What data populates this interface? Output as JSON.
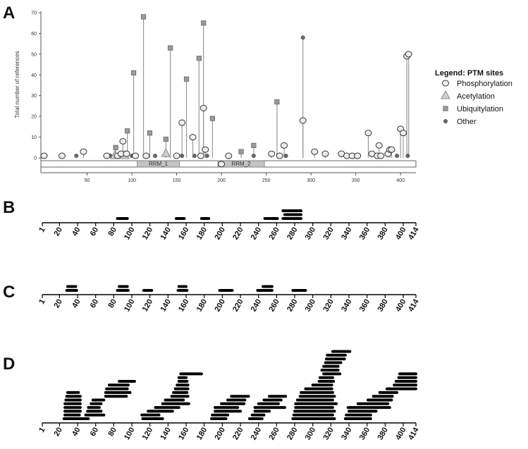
{
  "chart_data": [
    {
      "panel": "A",
      "type": "scatter",
      "ylabel": "Total number of references",
      "xlim": [
        0,
        414
      ],
      "ylim": [
        0,
        70
      ],
      "x_ticks": [
        50,
        100,
        150,
        200,
        250,
        300,
        350,
        400
      ],
      "y_ticks": [
        0,
        10,
        20,
        30,
        40,
        50,
        60,
        70
      ],
      "grid": false,
      "legend_position": "right",
      "legend": {
        "title": "Legend: PTM sites",
        "items": [
          {
            "label": "Phosphorylation",
            "marker": "circle",
            "color": "#e6e6e6"
          },
          {
            "label": "Acetylation",
            "marker": "triangle",
            "color": "#c8c8c8"
          },
          {
            "label": "Ubiquitylation",
            "marker": "square",
            "color": "#9a9a9a"
          },
          {
            "label": "Other",
            "marker": "dot",
            "color": "#6b6b6b"
          }
        ]
      },
      "domains": [
        {
          "label": "RRM_1",
          "start": 106,
          "end": 153
        },
        {
          "label": "RRM_2",
          "start": 196,
          "end": 248
        }
      ],
      "series": [
        {
          "name": "Phosphorylation",
          "points": [
            [
              2,
              1
            ],
            [
              22,
              1
            ],
            [
              46,
              3
            ],
            [
              72,
              1
            ],
            [
              84,
              1
            ],
            [
              88,
              2
            ],
            [
              90,
              8
            ],
            [
              94,
              2
            ],
            [
              104,
              1
            ],
            [
              116,
              1
            ],
            [
              150,
              1
            ],
            [
              156,
              17
            ],
            [
              168,
              10
            ],
            [
              177,
              1
            ],
            [
              180,
              24
            ],
            [
              182,
              4
            ],
            [
              200,
              -3
            ],
            [
              208,
              1
            ],
            [
              256,
              2
            ],
            [
              265,
              1
            ],
            [
              270,
              6
            ],
            [
              291,
              18
            ],
            [
              304,
              3
            ],
            [
              316,
              2
            ],
            [
              334,
              2
            ],
            [
              340,
              1
            ],
            [
              346,
              1
            ],
            [
              352,
              1
            ],
            [
              364,
              12
            ],
            [
              368,
              2
            ],
            [
              374,
              1
            ],
            [
              376,
              6
            ],
            [
              378,
              1
            ],
            [
              386,
              2
            ],
            [
              388,
              4
            ],
            [
              390,
              4
            ],
            [
              400,
              14
            ],
            [
              403,
              12
            ],
            [
              407,
              49
            ],
            [
              409,
              50
            ]
          ]
        },
        {
          "name": "Acetylation",
          "points": [
            [
              81,
              1
            ],
            [
              92,
              1
            ],
            [
              138,
              2
            ]
          ]
        },
        {
          "name": "Ubiquitylation",
          "points": [
            [
              82,
              5
            ],
            [
              95,
              13
            ],
            [
              102,
              41
            ],
            [
              113,
              68
            ],
            [
              120,
              12
            ],
            [
              138,
              9
            ],
            [
              143,
              53
            ],
            [
              161,
              38
            ],
            [
              175,
              48
            ],
            [
              180,
              65
            ],
            [
              190,
              19
            ],
            [
              222,
              3
            ],
            [
              236,
              6
            ],
            [
              262,
              27
            ]
          ]
        },
        {
          "name": "Other",
          "points": [
            [
              38,
              1
            ],
            [
              76,
              1
            ],
            [
              100,
              1
            ],
            [
              126,
              1
            ],
            [
              156,
              1
            ],
            [
              170,
              1
            ],
            [
              176,
              1
            ],
            [
              184,
              1
            ],
            [
              236,
              1
            ],
            [
              266,
              1
            ],
            [
              272,
              1
            ],
            [
              291,
              58
            ],
            [
              396,
              1
            ],
            [
              408,
              1
            ]
          ]
        }
      ]
    },
    {
      "panel": "B",
      "type": "bar",
      "xlim": [
        1,
        414
      ],
      "x_tick_labels": [
        "1",
        "20",
        "40",
        "60",
        "80",
        "100",
        "120",
        "140",
        "160",
        "180",
        "200",
        "220",
        "240",
        "260",
        "280",
        "300",
        "320",
        "340",
        "360",
        "380",
        "400",
        "414"
      ],
      "segments": [
        [
          84,
          95,
          0
        ],
        [
          149,
          158,
          0
        ],
        [
          177,
          185,
          0
        ],
        [
          247,
          261,
          0
        ],
        [
          267,
          287,
          0
        ],
        [
          269,
          287,
          1
        ],
        [
          267,
          287,
          2
        ]
      ]
    },
    {
      "panel": "C",
      "type": "bar",
      "xlim": [
        1,
        414
      ],
      "x_tick_labels": [
        "1",
        "20",
        "40",
        "60",
        "80",
        "100",
        "120",
        "140",
        "160",
        "180",
        "200",
        "220",
        "240",
        "260",
        "280",
        "300",
        "320",
        "340",
        "360",
        "380",
        "400",
        "414"
      ],
      "segments": [
        [
          28,
          39,
          0
        ],
        [
          29,
          38,
          1
        ],
        [
          84,
          96,
          0
        ],
        [
          86,
          95,
          1
        ],
        [
          113,
          122,
          0
        ],
        [
          151,
          161,
          0
        ],
        [
          152,
          160,
          1
        ],
        [
          197,
          211,
          0
        ],
        [
          239,
          255,
          0
        ],
        [
          245,
          255,
          1
        ],
        [
          278,
          292,
          0
        ]
      ]
    },
    {
      "panel": "D",
      "type": "bar",
      "xlim": [
        1,
        414
      ],
      "x_tick_labels": [
        "1",
        "20",
        "40",
        "60",
        "80",
        "100",
        "120",
        "140",
        "160",
        "180",
        "200",
        "220",
        "240",
        "260",
        "280",
        "300",
        "320",
        "340",
        "360",
        "380",
        "400",
        "414"
      ],
      "segments": [
        [
          25,
          41,
          0
        ],
        [
          42,
          52,
          0
        ],
        [
          26,
          42,
          1
        ],
        [
          26,
          43,
          2
        ],
        [
          26,
          43,
          3
        ],
        [
          26,
          43,
          4
        ],
        [
          27,
          43,
          5
        ],
        [
          28,
          43,
          6
        ],
        [
          29,
          41,
          7
        ],
        [
          49,
          69,
          1
        ],
        [
          51,
          66,
          2
        ],
        [
          52,
          64,
          3
        ],
        [
          55,
          66,
          4
        ],
        [
          57,
          69,
          5
        ],
        [
          71,
          94,
          6
        ],
        [
          71,
          98,
          7
        ],
        [
          72,
          95,
          8
        ],
        [
          75,
          96,
          9
        ],
        [
          86,
          103,
          10
        ],
        [
          112,
          134,
          0
        ],
        [
          111,
          130,
          1
        ],
        [
          118,
          145,
          2
        ],
        [
          126,
          152,
          3
        ],
        [
          134,
          163,
          4
        ],
        [
          137,
          157,
          5
        ],
        [
          144,
          162,
          6
        ],
        [
          146,
          161,
          7
        ],
        [
          148,
          162,
          8
        ],
        [
          150,
          162,
          9
        ],
        [
          152,
          161,
          10
        ],
        [
          152,
          160,
          11
        ],
        [
          154,
          177,
          12
        ],
        [
          188,
          204,
          0
        ],
        [
          189,
          206,
          1
        ],
        [
          192,
          220,
          2
        ],
        [
          192,
          217,
          3
        ],
        [
          199,
          224,
          4
        ],
        [
          206,
          225,
          5
        ],
        [
          210,
          229,
          6
        ],
        [
          230,
          244,
          0
        ],
        [
          233,
          246,
          1
        ],
        [
          236,
          252,
          2
        ],
        [
          236,
          269,
          3
        ],
        [
          240,
          262,
          4
        ],
        [
          246,
          265,
          5
        ],
        [
          252,
          270,
          6
        ],
        [
          278,
          324,
          0
        ],
        [
          279,
          322,
          1
        ],
        [
          280,
          324,
          2
        ],
        [
          281,
          322,
          3
        ],
        [
          281,
          326,
          4
        ],
        [
          283,
          322,
          5
        ],
        [
          286,
          324,
          6
        ],
        [
          287,
          322,
          7
        ],
        [
          292,
          321,
          8
        ],
        [
          300,
          321,
          9
        ],
        [
          307,
          323,
          10
        ],
        [
          308,
          322,
          11
        ],
        [
          312,
          330,
          12
        ],
        [
          310,
          328,
          13
        ],
        [
          312,
          328,
          14
        ],
        [
          314,
          331,
          15
        ],
        [
          315,
          335,
          16
        ],
        [
          316,
          336,
          17
        ],
        [
          322,
          341,
          18
        ],
        [
          336,
          364,
          0
        ],
        [
          337,
          364,
          1
        ],
        [
          340,
          370,
          2
        ],
        [
          339,
          385,
          3
        ],
        [
          350,
          383,
          4
        ],
        [
          361,
          387,
          5
        ],
        [
          367,
          388,
          6
        ],
        [
          374,
          393,
          7
        ],
        [
          382,
          414,
          8
        ],
        [
          390,
          414,
          9
        ],
        [
          392,
          414,
          10
        ],
        [
          395,
          414,
          11
        ],
        [
          396,
          414,
          12
        ]
      ]
    }
  ],
  "panel_labels": {
    "a": "A",
    "b": "B",
    "c": "C",
    "d": "D"
  }
}
